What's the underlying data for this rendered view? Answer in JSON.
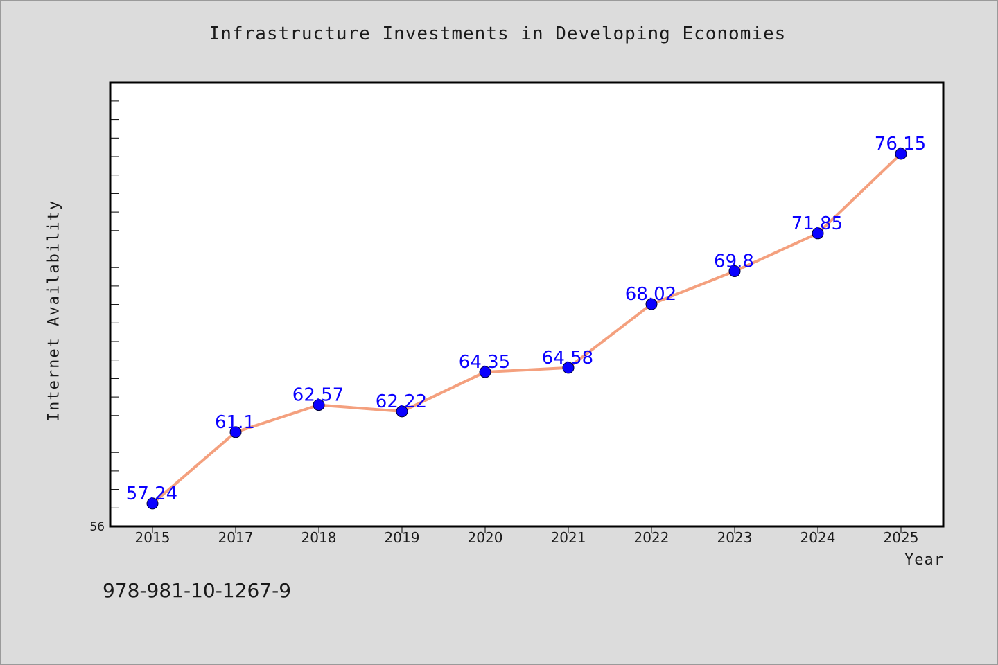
{
  "chart_data": {
    "type": "line",
    "title": "Infrastructure Investments in Developing Economies",
    "xlabel": "Year",
    "ylabel": "Internet Availability",
    "categories": [
      "2015",
      "2017",
      "2018",
      "2019",
      "2020",
      "2021",
      "2022",
      "2023",
      "2024",
      "2025"
    ],
    "series": [
      {
        "values": [
          57.24,
          61.1,
          62.57,
          62.22,
          64.35,
          64.58,
          68.02,
          69.8,
          71.85,
          76.15
        ],
        "labels": [
          "57.24",
          "61.1",
          "62.57",
          "62.22",
          "64.35",
          "64.58",
          "68.02",
          "69.8",
          "71.85",
          "76.15"
        ],
        "line_color": "#f4a07e",
        "marker_color": "#0a00ff"
      }
    ],
    "ylim": [
      56,
      80
    ],
    "ytick_labels": [
      "56"
    ],
    "grid": false,
    "legend": false,
    "colors": {
      "background": "#dcdcdc",
      "plot_background": "#ffffff",
      "data_label": "#0a00ff"
    }
  },
  "footer": {
    "text": "978-981-10-1267-9"
  }
}
